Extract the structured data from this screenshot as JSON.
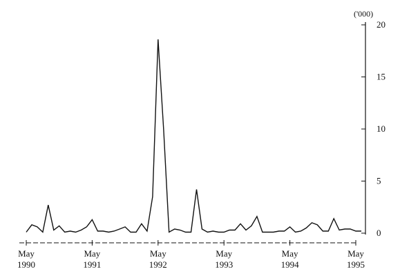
{
  "chart_data": {
    "type": "line",
    "title": "",
    "xlabel": "",
    "ylabel": "",
    "y_unit": "('000)",
    "ylim": [
      0,
      20
    ],
    "y_ticks": [
      0,
      5,
      10,
      15,
      20
    ],
    "y_axis_position": "right",
    "grid": false,
    "legend": "none",
    "x_tick_labels": [
      {
        "month": "May",
        "year": "1990",
        "x": 0
      },
      {
        "month": "May",
        "year": "1991",
        "x": 12
      },
      {
        "month": "May",
        "year": "1992",
        "x": 24
      },
      {
        "month": "May",
        "year": "1993",
        "x": 36
      },
      {
        "month": "May",
        "year": "1994",
        "x": 48
      },
      {
        "month": "May",
        "year": "1995",
        "x": 60
      }
    ],
    "x_unit": "months from May 1990",
    "series": [
      {
        "color": "#111111",
        "values": [
          [
            0,
            0.1
          ],
          [
            1,
            0.8
          ],
          [
            2,
            0.6
          ],
          [
            3,
            0.1
          ],
          [
            4,
            2.7
          ],
          [
            5,
            0.3
          ],
          [
            6,
            0.7
          ],
          [
            7,
            0.1
          ],
          [
            8,
            0.2
          ],
          [
            9,
            0.1
          ],
          [
            10,
            0.3
          ],
          [
            11,
            0.6
          ],
          [
            12,
            1.3
          ],
          [
            13,
            0.2
          ],
          [
            14,
            0.2
          ],
          [
            15,
            0.1
          ],
          [
            16,
            0.2
          ],
          [
            17,
            0.4
          ],
          [
            18,
            0.6
          ],
          [
            19,
            0.1
          ],
          [
            20,
            0.1
          ],
          [
            21,
            0.9
          ],
          [
            22,
            0.2
          ],
          [
            23,
            3.5
          ],
          [
            24,
            18.6
          ],
          [
            25,
            10.0
          ],
          [
            26,
            0.1
          ],
          [
            27,
            0.4
          ],
          [
            28,
            0.3
          ],
          [
            29,
            0.1
          ],
          [
            30,
            0.1
          ],
          [
            31,
            4.2
          ],
          [
            32,
            0.4
          ],
          [
            33,
            0.1
          ],
          [
            34,
            0.2
          ],
          [
            35,
            0.1
          ],
          [
            36,
            0.1
          ],
          [
            37,
            0.3
          ],
          [
            38,
            0.3
          ],
          [
            39,
            0.9
          ],
          [
            40,
            0.3
          ],
          [
            41,
            0.7
          ],
          [
            42,
            1.6
          ],
          [
            43,
            0.1
          ],
          [
            44,
            0.1
          ],
          [
            45,
            0.1
          ],
          [
            46,
            0.2
          ],
          [
            47,
            0.2
          ],
          [
            48,
            0.6
          ],
          [
            49,
            0.1
          ],
          [
            50,
            0.2
          ],
          [
            51,
            0.5
          ],
          [
            52,
            1.0
          ],
          [
            53,
            0.8
          ],
          [
            54,
            0.2
          ],
          [
            55,
            0.2
          ],
          [
            56,
            1.4
          ],
          [
            57,
            0.3
          ],
          [
            58,
            0.4
          ],
          [
            59,
            0.4
          ],
          [
            60,
            0.2
          ],
          [
            61,
            0.2
          ]
        ]
      }
    ]
  }
}
